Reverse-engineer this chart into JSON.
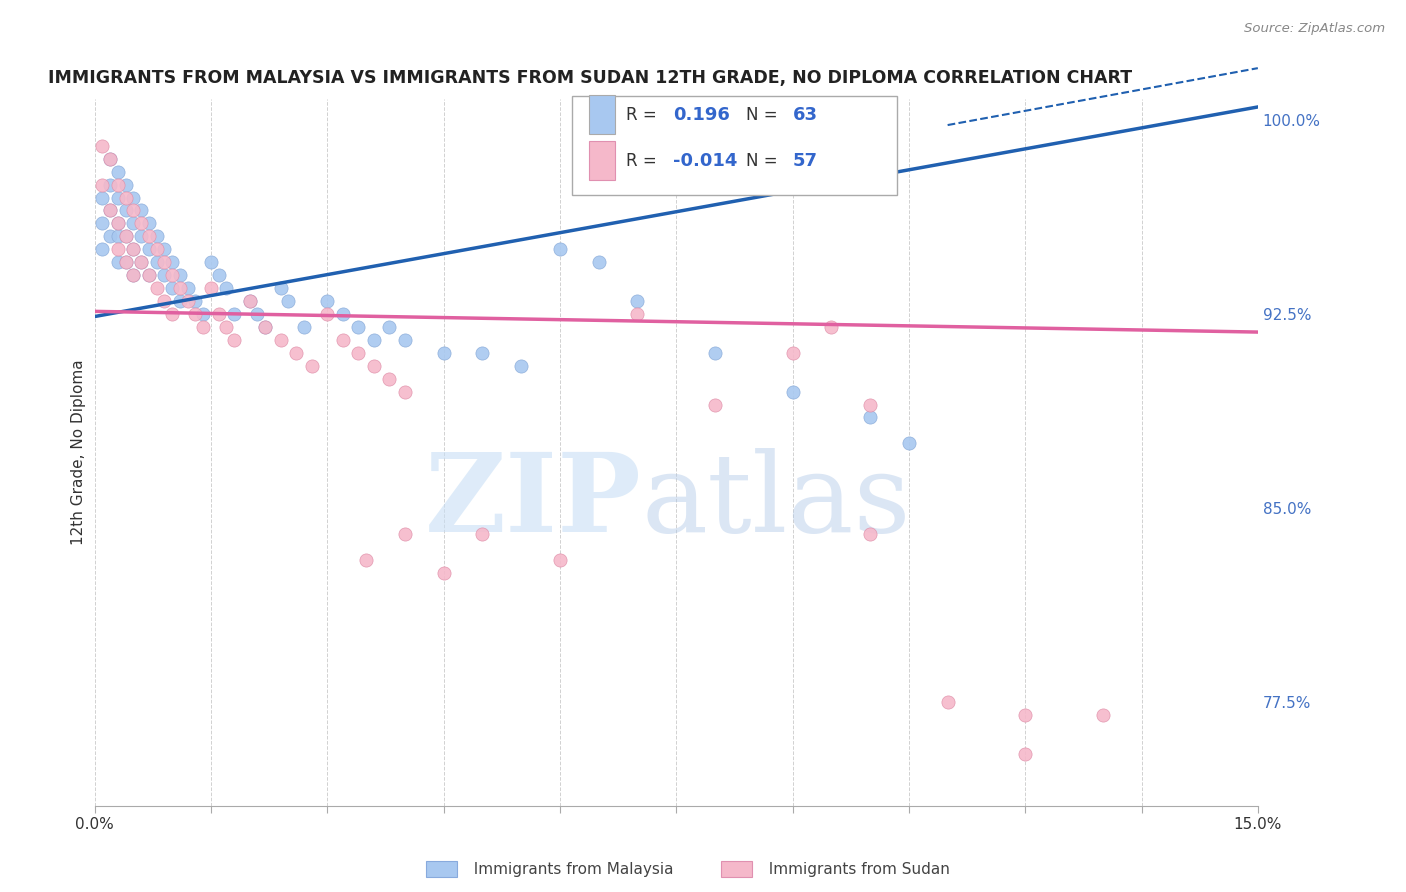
{
  "title": "IMMIGRANTS FROM MALAYSIA VS IMMIGRANTS FROM SUDAN 12TH GRADE, NO DIPLOMA CORRELATION CHART",
  "source": "Source: ZipAtlas.com",
  "xmin": 0.0,
  "xmax": 0.15,
  "ymin": 0.735,
  "ymax": 1.008,
  "color_malaysia": "#a8c8f0",
  "color_sudan": "#f5b8ca",
  "color_line_malaysia": "#2060b0",
  "color_line_sudan": "#e060a0",
  "color_right_axis": "#4472c4",
  "legend_R1": "0.196",
  "legend_N1": "63",
  "legend_R2": "-0.014",
  "legend_N2": "57",
  "malaysia_x": [
    0.001,
    0.001,
    0.001,
    0.002,
    0.002,
    0.002,
    0.002,
    0.003,
    0.003,
    0.003,
    0.003,
    0.003,
    0.004,
    0.004,
    0.004,
    0.004,
    0.005,
    0.005,
    0.005,
    0.005,
    0.006,
    0.006,
    0.006,
    0.007,
    0.007,
    0.007,
    0.008,
    0.008,
    0.009,
    0.009,
    0.01,
    0.01,
    0.011,
    0.011,
    0.012,
    0.013,
    0.014,
    0.015,
    0.016,
    0.017,
    0.018,
    0.02,
    0.021,
    0.022,
    0.024,
    0.025,
    0.027,
    0.03,
    0.032,
    0.034,
    0.036,
    0.038,
    0.04,
    0.045,
    0.05,
    0.055,
    0.06,
    0.065,
    0.07,
    0.08,
    0.09,
    0.1,
    0.105
  ],
  "malaysia_y": [
    0.97,
    0.96,
    0.95,
    0.985,
    0.975,
    0.965,
    0.955,
    0.98,
    0.97,
    0.96,
    0.955,
    0.945,
    0.975,
    0.965,
    0.955,
    0.945,
    0.97,
    0.96,
    0.95,
    0.94,
    0.965,
    0.955,
    0.945,
    0.96,
    0.95,
    0.94,
    0.955,
    0.945,
    0.95,
    0.94,
    0.945,
    0.935,
    0.94,
    0.93,
    0.935,
    0.93,
    0.925,
    0.945,
    0.94,
    0.935,
    0.925,
    0.93,
    0.925,
    0.92,
    0.935,
    0.93,
    0.92,
    0.93,
    0.925,
    0.92,
    0.915,
    0.92,
    0.915,
    0.91,
    0.91,
    0.905,
    0.95,
    0.945,
    0.93,
    0.91,
    0.895,
    0.885,
    0.875
  ],
  "sudan_x": [
    0.001,
    0.001,
    0.002,
    0.002,
    0.003,
    0.003,
    0.003,
    0.004,
    0.004,
    0.004,
    0.005,
    0.005,
    0.005,
    0.006,
    0.006,
    0.007,
    0.007,
    0.008,
    0.008,
    0.009,
    0.009,
    0.01,
    0.01,
    0.011,
    0.012,
    0.013,
    0.014,
    0.015,
    0.016,
    0.017,
    0.018,
    0.02,
    0.022,
    0.024,
    0.026,
    0.028,
    0.03,
    0.032,
    0.034,
    0.036,
    0.038,
    0.04,
    0.05,
    0.06,
    0.07,
    0.08,
    0.09,
    0.1,
    0.11,
    0.12,
    0.035,
    0.04,
    0.045,
    0.095,
    0.1,
    0.12,
    0.13
  ],
  "sudan_y": [
    0.99,
    0.975,
    0.985,
    0.965,
    0.975,
    0.96,
    0.95,
    0.97,
    0.955,
    0.945,
    0.965,
    0.95,
    0.94,
    0.96,
    0.945,
    0.955,
    0.94,
    0.95,
    0.935,
    0.945,
    0.93,
    0.94,
    0.925,
    0.935,
    0.93,
    0.925,
    0.92,
    0.935,
    0.925,
    0.92,
    0.915,
    0.93,
    0.92,
    0.915,
    0.91,
    0.905,
    0.925,
    0.915,
    0.91,
    0.905,
    0.9,
    0.895,
    0.84,
    0.83,
    0.925,
    0.89,
    0.91,
    0.84,
    0.775,
    0.77,
    0.83,
    0.84,
    0.825,
    0.92,
    0.89,
    0.755,
    0.77
  ]
}
